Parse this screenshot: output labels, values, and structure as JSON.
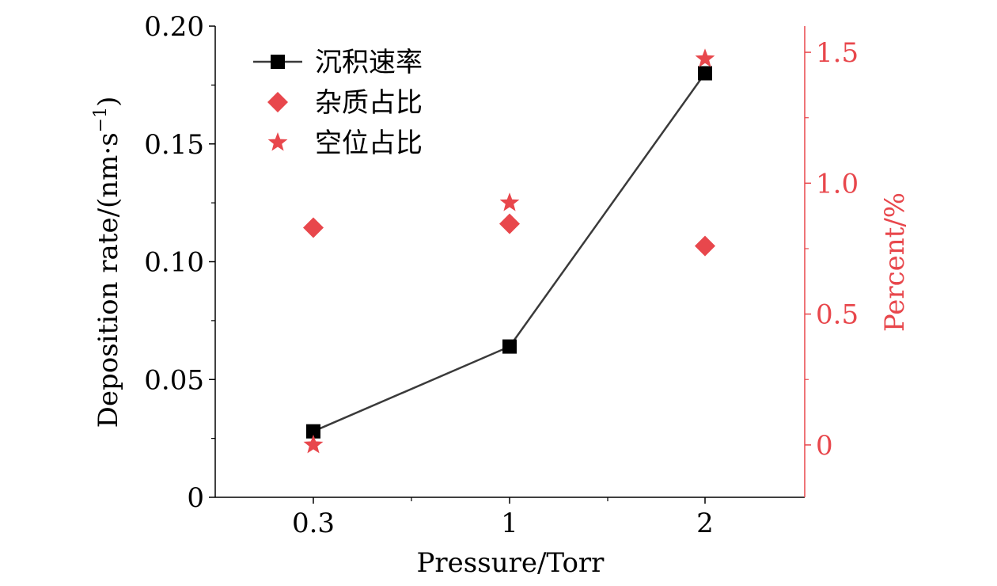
{
  "chart_data": {
    "type": "scatter",
    "x_categories": [
      "0.3",
      "1",
      "2"
    ],
    "xlabel": "Pressure/Torr",
    "left_axis": {
      "label": "Deposition rate/(nm·s",
      "label_superscript": "−1",
      "label_close": ")",
      "ylim": [
        0,
        0.2
      ],
      "ticks": [
        0,
        0.05,
        0.1,
        0.15,
        0.2
      ],
      "tick_labels": [
        "0",
        "0.05",
        "0.10",
        "0.15",
        "0.20"
      ],
      "color": "#000000"
    },
    "right_axis": {
      "label": "Percent/%",
      "ylim": [
        -0.2,
        1.6
      ],
      "ticks": [
        0,
        0.5,
        1.0,
        1.5
      ],
      "tick_labels": [
        "0",
        "0.5",
        "1.0",
        "1.5"
      ],
      "color": "#e8474c"
    },
    "series": [
      {
        "name": "沉积速率",
        "axis": "left",
        "marker": "square",
        "line": true,
        "color": "#000000",
        "line_color": "#3a3a3a",
        "values": [
          0.028,
          0.064,
          0.18
        ]
      },
      {
        "name": "杂质占比",
        "axis": "right",
        "marker": "diamond",
        "line": false,
        "color": "#e8474c",
        "values": [
          0.83,
          0.845,
          0.76
        ]
      },
      {
        "name": "空位占比",
        "axis": "right",
        "marker": "star",
        "line": false,
        "color": "#e8474c",
        "values": [
          0.0,
          0.925,
          1.475
        ]
      }
    ],
    "legend_position": "top-left",
    "grid": false
  }
}
